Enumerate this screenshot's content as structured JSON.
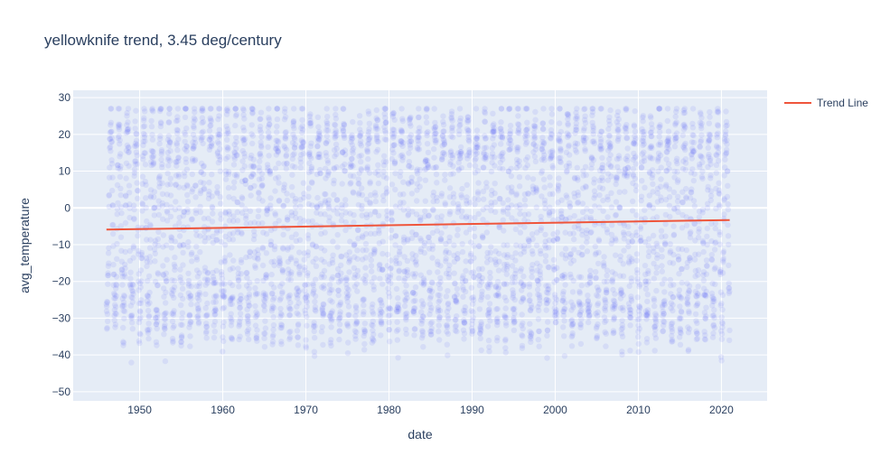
{
  "chart_data": {
    "type": "scatter",
    "title": "yellowknife trend, 3.45 deg/century",
    "xlabel": "date",
    "ylabel": "avg_temperature",
    "x_range": [
      1942,
      2025.5
    ],
    "ylim": [
      -52.5,
      32
    ],
    "x_ticks": [
      1950,
      1960,
      1970,
      1980,
      1990,
      2000,
      2010,
      2020
    ],
    "y_ticks": [
      30,
      20,
      10,
      0,
      -10,
      -20,
      -30,
      -40,
      -50
    ],
    "grid": true,
    "legend_position": "top-right",
    "data_extent": {
      "x_min": 1946.0,
      "x_max": 2021.0,
      "y_min": -47,
      "y_max": 27
    },
    "series": [
      {
        "name": "",
        "type": "scatter",
        "description": "daily average temperature, dense seasonal scatter",
        "seasonal_mean": -4.5,
        "seasonal_amplitude": 27,
        "summer_peak_range": [
          15,
          22
        ],
        "winter_trough_range": [
          -42,
          -25
        ],
        "color": "#636efa",
        "opacity": 0.12
      },
      {
        "name": "Trend Line",
        "type": "line",
        "x": [
          1946.0,
          2021.0
        ],
        "y": [
          -5.9,
          -3.3
        ],
        "color": "#ef553b"
      }
    ]
  },
  "colors": {
    "plot_bg": "#e5ecf6",
    "grid": "#ffffff",
    "text": "#2a3f5f"
  }
}
